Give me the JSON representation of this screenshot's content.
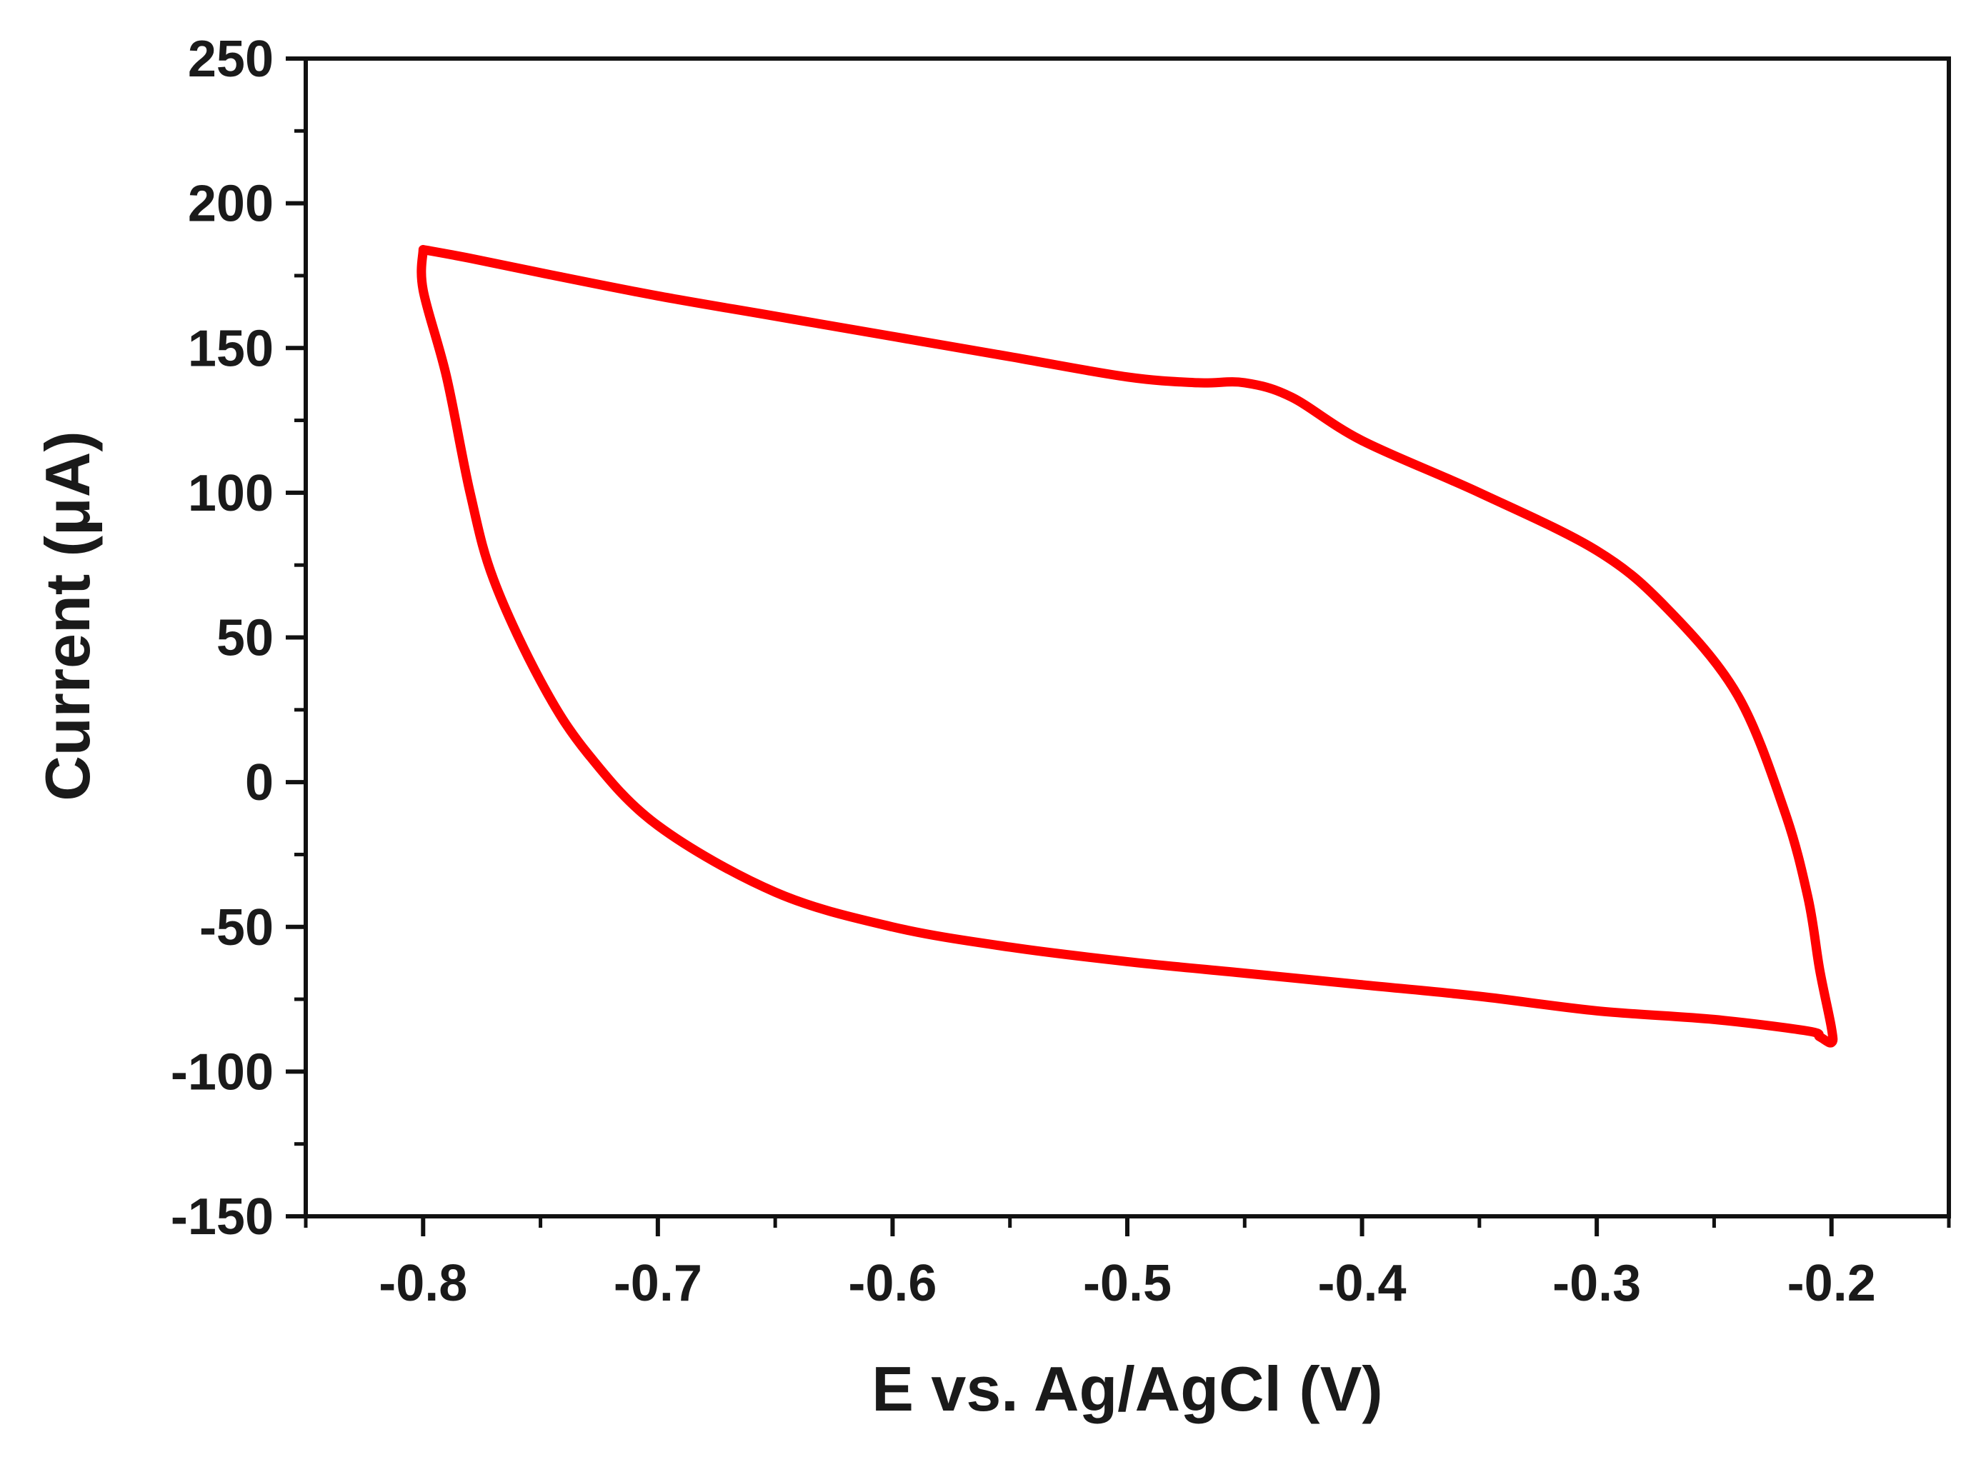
{
  "chart_data": {
    "type": "line",
    "title": "",
    "xlabel": "E vs. Ag/AgCl (V)",
    "ylabel": "Current (μA)",
    "xlim": [
      -0.85,
      -0.15
    ],
    "ylim": [
      -150,
      250
    ],
    "x_ticks": [
      -0.8,
      -0.7,
      -0.6,
      -0.5,
      -0.4,
      -0.3,
      -0.2
    ],
    "x_tick_labels": [
      "-0.8",
      "-0.7",
      "-0.6",
      "-0.5",
      "-0.4",
      "-0.3",
      "-0.2"
    ],
    "y_ticks": [
      -150,
      -100,
      -50,
      0,
      50,
      100,
      150,
      200,
      250
    ],
    "y_tick_labels": [
      "-150",
      "-100",
      "-50",
      "0",
      "50",
      "100",
      "150",
      "200",
      "250"
    ],
    "x_minor_step": 0.05,
    "y_minor_step": 25,
    "grid": false,
    "legend": "none",
    "series": [
      {
        "color": "#ff0000",
        "x": [
          -0.8,
          -0.78,
          -0.75,
          -0.7,
          -0.65,
          -0.6,
          -0.55,
          -0.5,
          -0.47,
          -0.45,
          -0.43,
          -0.4,
          -0.35,
          -0.3,
          -0.27,
          -0.24,
          -0.22,
          -0.21,
          -0.205,
          -0.2,
          -0.2,
          -0.205,
          -0.21,
          -0.25,
          -0.3,
          -0.35,
          -0.4,
          -0.45,
          -0.5,
          -0.55,
          -0.6,
          -0.65,
          -0.7,
          -0.73,
          -0.75,
          -0.77,
          -0.78,
          -0.79,
          -0.8,
          -0.8
        ],
        "y": [
          184,
          181,
          176,
          168,
          161,
          154,
          147,
          140,
          138,
          138,
          133,
          118,
          100,
          80,
          60,
          30,
          -10,
          -40,
          -65,
          -85,
          -90,
          -88,
          -86,
          -82,
          -79,
          -74,
          -70,
          -66,
          -62,
          -57,
          -50,
          -38,
          -15,
          10,
          35,
          70,
          100,
          140,
          170,
          184
        ]
      }
    ]
  }
}
